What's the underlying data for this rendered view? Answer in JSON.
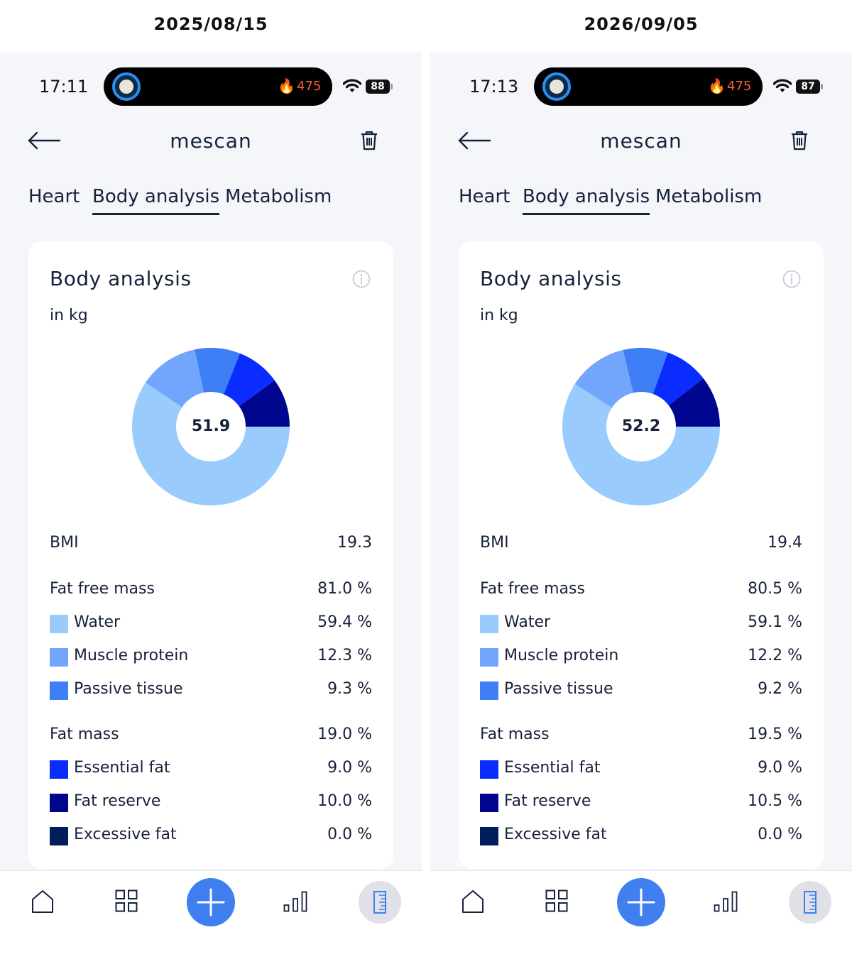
{
  "colors": {
    "water": "#99cbfd",
    "muscle_protein": "#72a5fc",
    "passive_tissue": "#3f7ff6",
    "essential_fat": "#0a2cff",
    "fat_reserve": "#00068e",
    "excessive_fat": "#001e5c",
    "accent": "#3f7ff0"
  },
  "panels": [
    {
      "date": "2025/08/15",
      "status": {
        "time": "17:11",
        "calories": "475",
        "battery": "88"
      },
      "header": {
        "title": "mescan"
      },
      "tabs": [
        "Heart",
        "Body analysis",
        "Metabolism"
      ],
      "card": {
        "title": "Body analysis",
        "unit": "in kg",
        "total": "51.9"
      },
      "chart_data": {
        "type": "pie",
        "labels": [
          "Water",
          "Muscle protein",
          "Passive tissue",
          "Essential fat",
          "Fat reserve",
          "Excessive fat"
        ],
        "values": [
          59.4,
          12.3,
          9.3,
          9.0,
          10.0,
          0.0
        ],
        "center_value": 51.9
      },
      "bmi": {
        "label": "BMI",
        "value": "19.3"
      },
      "fat_free": {
        "label": "Fat free mass",
        "value": "81.0 %",
        "items": [
          {
            "label": "Water",
            "value": "59.4 %"
          },
          {
            "label": "Muscle protein",
            "value": "12.3 %"
          },
          {
            "label": "Passive tissue",
            "value": "9.3 %"
          }
        ]
      },
      "fat": {
        "label": "Fat mass",
        "value": "19.0 %",
        "items": [
          {
            "label": "Essential fat",
            "value": "9.0 %"
          },
          {
            "label": "Fat reserve",
            "value": "10.0 %"
          },
          {
            "label": "Excessive fat",
            "value": "0.0 %"
          }
        ]
      }
    },
    {
      "date": "2026/09/05",
      "status": {
        "time": "17:13",
        "calories": "475",
        "battery": "87"
      },
      "header": {
        "title": "mescan"
      },
      "tabs": [
        "Heart",
        "Body analysis",
        "Metabolism"
      ],
      "card": {
        "title": "Body analysis",
        "unit": "in kg",
        "total": "52.2"
      },
      "chart_data": {
        "type": "pie",
        "labels": [
          "Water",
          "Muscle protein",
          "Passive tissue",
          "Essential fat",
          "Fat reserve",
          "Excessive fat"
        ],
        "values": [
          59.1,
          12.2,
          9.2,
          9.0,
          10.5,
          0.0
        ],
        "center_value": 52.2
      },
      "bmi": {
        "label": "BMI",
        "value": "19.4"
      },
      "fat_free": {
        "label": "Fat free mass",
        "value": "80.5 %",
        "items": [
          {
            "label": "Water",
            "value": "59.1 %"
          },
          {
            "label": "Muscle protein",
            "value": "12.2 %"
          },
          {
            "label": "Passive tissue",
            "value": "9.2 %"
          }
        ]
      },
      "fat": {
        "label": "Fat mass",
        "value": "19.5 %",
        "items": [
          {
            "label": "Essential fat",
            "value": "9.0 %"
          },
          {
            "label": "Fat reserve",
            "value": "10.5 %"
          },
          {
            "label": "Excessive fat",
            "value": "0.0 %"
          }
        ]
      }
    }
  ]
}
